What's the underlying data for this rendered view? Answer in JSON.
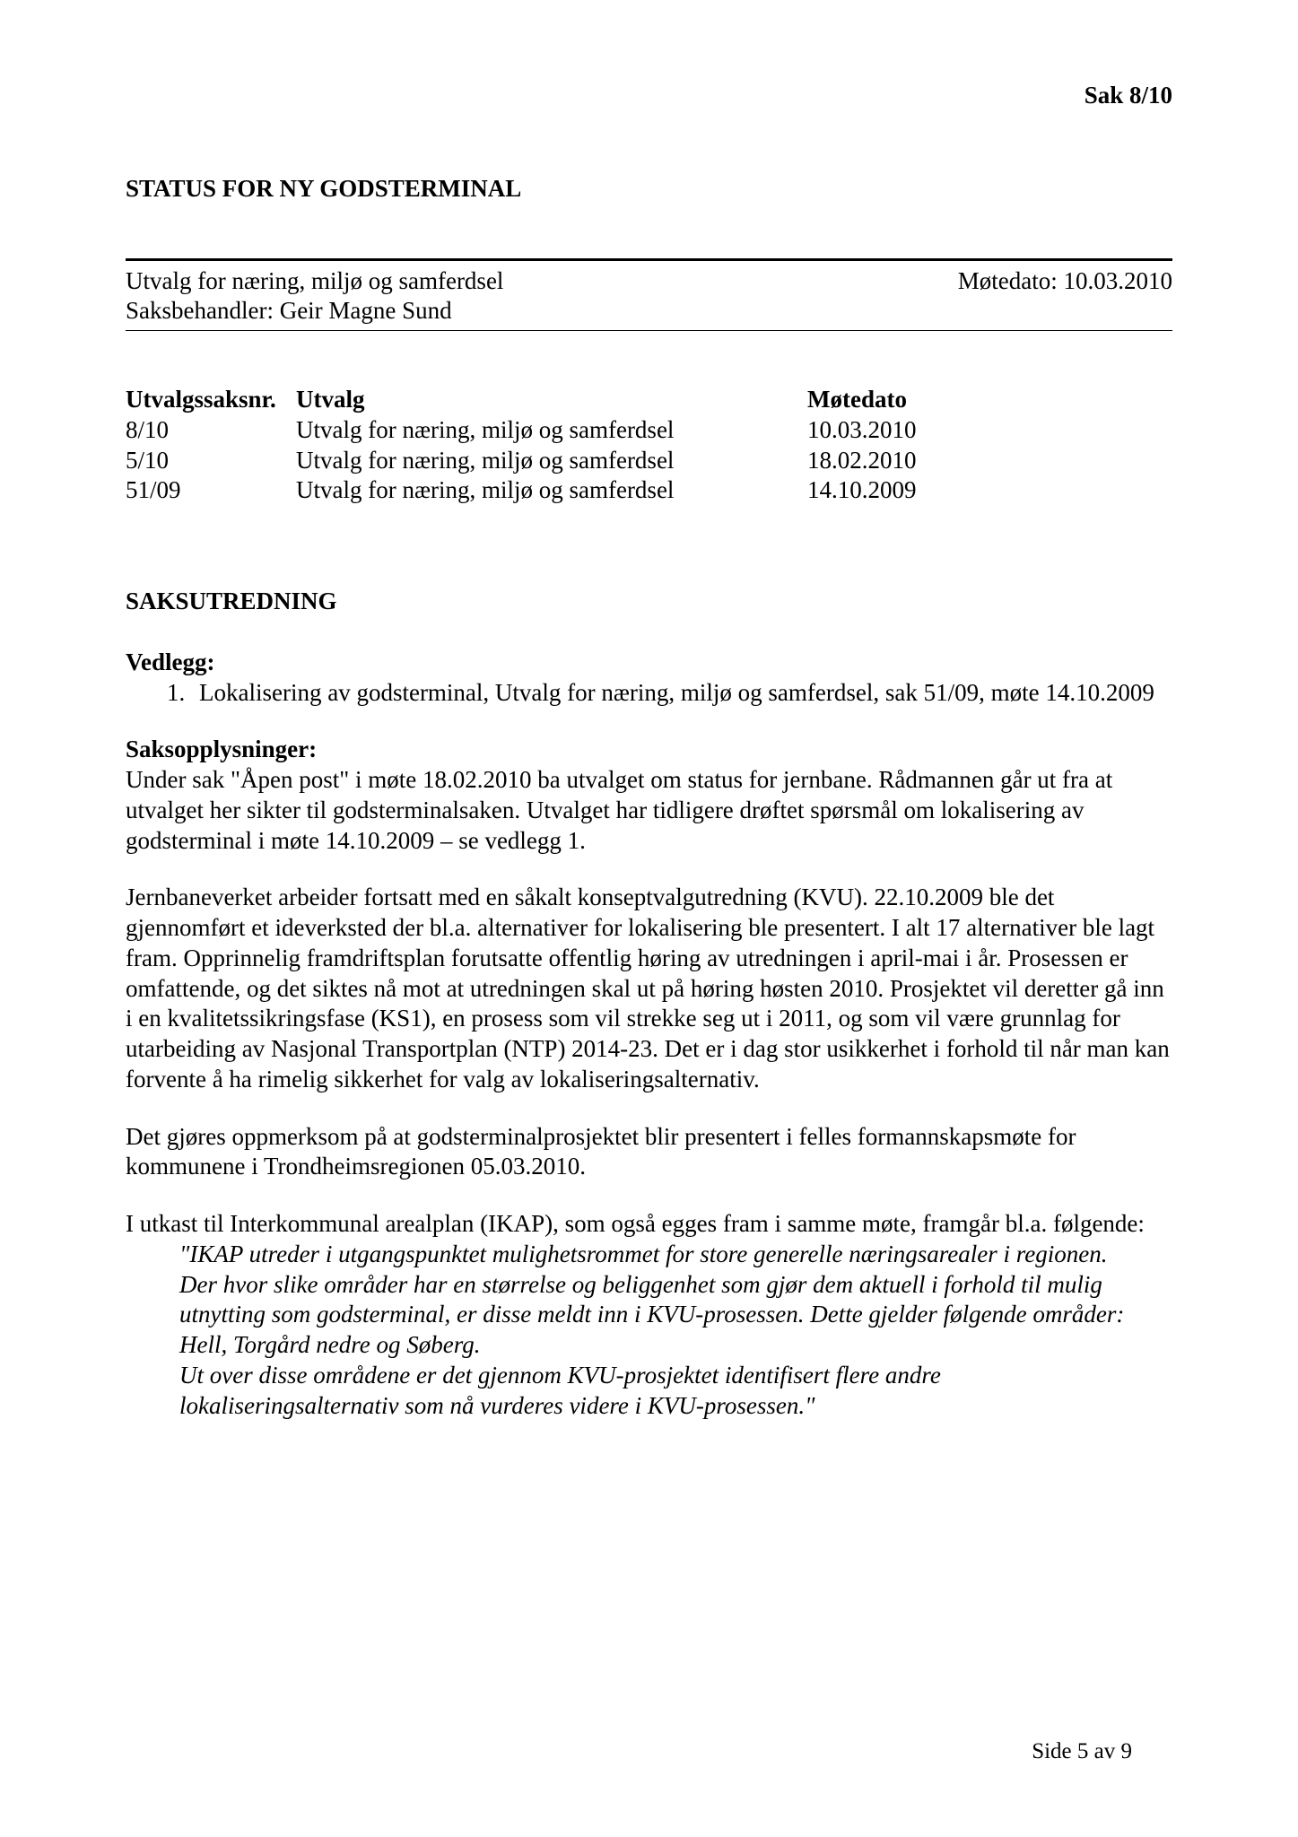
{
  "header": {
    "case_label": "Sak  8/10"
  },
  "title": "STATUS FOR NY GODSTERMINAL",
  "info": {
    "committee": "Utvalg for næring, miljø og samferdsel",
    "meeting_date_label": "Møtedato: 10.03.2010",
    "case_handler": "Saksbehandler: Geir Magne Sund"
  },
  "table": {
    "head": {
      "c1": "Utvalgssaksnr.",
      "c2": "Utvalg",
      "c3": "Møtedato"
    },
    "rows": [
      {
        "c1": "8/10",
        "c2": "Utvalg for næring, miljø og samferdsel",
        "c3": "10.03.2010"
      },
      {
        "c1": "5/10",
        "c2": "Utvalg for næring, miljø og samferdsel",
        "c3": "18.02.2010"
      },
      {
        "c1": "51/09",
        "c2": "Utvalg for næring, miljø og samferdsel",
        "c3": "14.10.2009"
      }
    ]
  },
  "sections": {
    "saksutredning_title": "SAKSUTREDNING",
    "vedlegg": {
      "heading": "Vedlegg:",
      "items": [
        {
          "num": "1.",
          "text": "Lokalisering av godsterminal, Utvalg for næring, miljø og samferdsel, sak 51/09, møte 14.10.2009"
        }
      ]
    },
    "saksopplysninger": {
      "heading": "Saksopplysninger:",
      "p1": "Under sak \"Åpen post\" i møte 18.02.2010 ba utvalget om status for jernbane. Rådmannen går ut fra at utvalget her sikter til godsterminalsaken. Utvalget har tidligere drøftet spørsmål om lokalisering av godsterminal i møte 14.10.2009 – se vedlegg 1.",
      "p2": "Jernbaneverket arbeider fortsatt med en såkalt konseptvalgutredning (KVU). 22.10.2009 ble det gjennomført et ideverksted der bl.a. alternativer for lokalisering ble presentert. I alt 17 alternativer ble lagt fram. Opprinnelig framdriftsplan forutsatte offentlig høring av utredningen i april-mai i år. Prosessen er omfattende, og det siktes nå mot at utredningen skal ut på høring høsten 2010. Prosjektet vil deretter gå inn i en kvalitetssikringsfase (KS1), en prosess som vil strekke seg ut i 2011, og som vil være grunnlag for utarbeiding av Nasjonal Transportplan (NTP) 2014-23. Det er i dag stor usikkerhet i forhold til når man kan forvente å ha rimelig sikkerhet for valg av lokaliseringsalternativ.",
      "p3": "Det gjøres oppmerksom på at godsterminalprosjektet blir presentert i felles formannskapsmøte for kommunene i Trondheimsregionen 05.03.2010.",
      "p4": "I utkast til Interkommunal arealplan (IKAP), som også egges fram i samme møte, framgår bl.a. følgende:",
      "quote1": "\"IKAP utreder i utgangspunktet mulighetsrommet for store generelle næringsarealer i regionen. Der hvor slike områder har en størrelse og beliggenhet som gjør dem aktuell i forhold til mulig utnytting som godsterminal, er disse meldt inn i KVU-prosessen. Dette gjelder følgende områder: Hell, Torgård nedre og Søberg.",
      "quote2": "Ut over disse områdene er det gjennom KVU-prosjektet identifisert flere andre lokaliseringsalternativ som nå vurderes videre i KVU-prosessen.\""
    }
  },
  "footer": {
    "page_label": "Side 5 av 9"
  }
}
